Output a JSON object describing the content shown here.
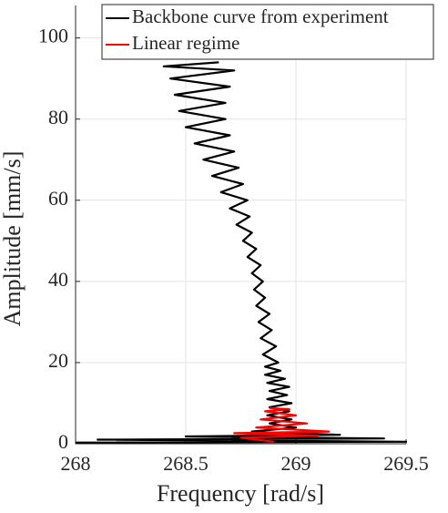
{
  "chart_data": {
    "type": "line",
    "x_label": "Frequency [rad/s]",
    "y_label": "Amplitude [mm/s]",
    "xlim": [
      268,
      269.5
    ],
    "ylim": [
      0,
      108
    ],
    "xticks": [
      268,
      268.5,
      269,
      269.5
    ],
    "yticks": [
      0,
      20,
      40,
      60,
      80,
      100
    ],
    "grid": true,
    "legend": "upper right",
    "series": [
      {
        "name": "Backbone curve from experiment",
        "color": "#000000",
        "x": [
          268.0,
          269.5,
          268.1,
          269.4,
          268.5,
          269.2,
          268.8,
          269.0,
          268.88,
          268.98,
          268.87,
          268.97,
          268.88,
          268.98,
          268.87,
          268.96,
          268.88,
          268.97,
          268.87,
          268.95,
          268.86,
          268.93,
          268.86,
          268.92,
          268.85,
          268.91,
          268.84,
          268.89,
          268.83,
          268.88,
          268.82,
          268.86,
          268.81,
          268.85,
          268.8,
          268.84,
          268.78,
          268.82,
          268.76,
          268.8,
          268.73,
          268.79,
          268.7,
          268.78,
          268.66,
          268.76,
          268.62,
          268.74,
          268.58,
          268.72,
          268.54,
          268.7,
          268.5,
          268.68,
          268.47,
          268.68,
          268.45,
          268.7,
          268.43,
          268.72,
          268.4,
          268.65
        ],
        "values": [
          0.3,
          0.5,
          1.0,
          1.3,
          1.8,
          2.2,
          3,
          4,
          5,
          6,
          7,
          8,
          9,
          10,
          11,
          12,
          13,
          14,
          15,
          16,
          17,
          18,
          19,
          20,
          22,
          24,
          26,
          28,
          30,
          32,
          34,
          36,
          38,
          40,
          42,
          44,
          46,
          48,
          50,
          52,
          54,
          56,
          58,
          60,
          62,
          64,
          66,
          68,
          70,
          72,
          74,
          76,
          78,
          80,
          82,
          84,
          86,
          88,
          90,
          92,
          93,
          94
        ]
      },
      {
        "name": "Linear regime",
        "color": "#ff0000",
        "x": [
          268.9,
          268.75,
          269.1,
          268.72,
          269.15,
          268.82,
          269.05,
          268.84,
          269.0,
          268.86,
          268.97,
          268.88
        ],
        "values": [
          0.5,
          1.5,
          2,
          2.6,
          3,
          4,
          5,
          6,
          7,
          8,
          8.5,
          8.8
        ]
      }
    ]
  }
}
